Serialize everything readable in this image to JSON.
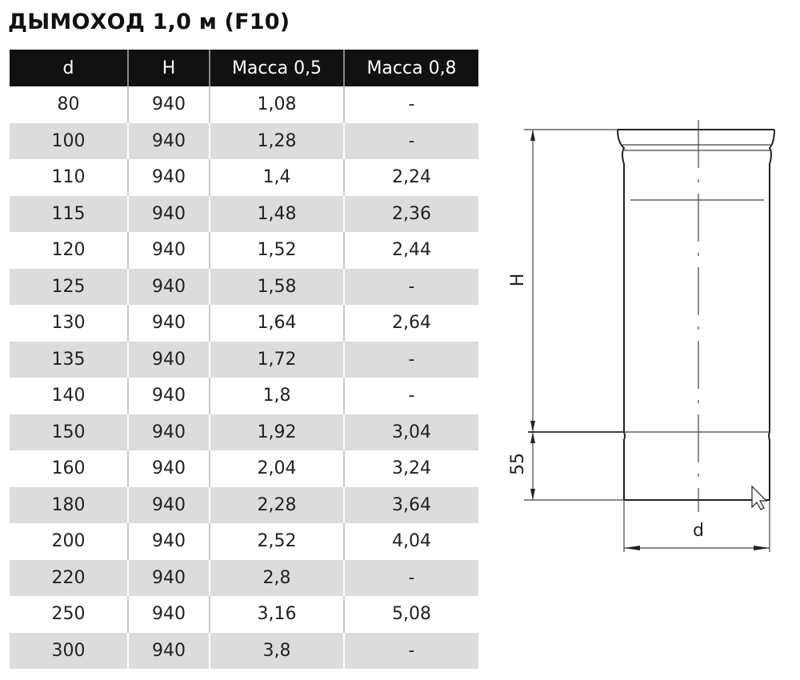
{
  "title": "ДЫМОХОД 1,0 м (F10)",
  "table": {
    "header": [
      "d",
      "H",
      "Масса 0,5",
      "Масса 0,8"
    ],
    "rows": [
      [
        "80",
        "940",
        "1,08",
        "-"
      ],
      [
        "100",
        "940",
        "1,28",
        "-"
      ],
      [
        "110",
        "940",
        "1,4",
        "2,24"
      ],
      [
        "115",
        "940",
        "1,48",
        "2,36"
      ],
      [
        "120",
        "940",
        "1,52",
        "2,44"
      ],
      [
        "125",
        "940",
        "1,58",
        "-"
      ],
      [
        "130",
        "940",
        "1,64",
        "2,64"
      ],
      [
        "135",
        "940",
        "1,72",
        "-"
      ],
      [
        "140",
        "940",
        "1,8",
        "-"
      ],
      [
        "150",
        "940",
        "1,92",
        "3,04"
      ],
      [
        "160",
        "940",
        "2,04",
        "3,24"
      ],
      [
        "180",
        "940",
        "2,28",
        "3,64"
      ],
      [
        "200",
        "940",
        "2,52",
        "4,04"
      ],
      [
        "220",
        "940",
        "2,8",
        "-"
      ],
      [
        "250",
        "940",
        "3,16",
        "5,08"
      ],
      [
        "300",
        "940",
        "3,8",
        "-"
      ]
    ]
  },
  "diagram": {
    "height_label": "H",
    "socket_label": "55",
    "diameter_label": "d"
  }
}
